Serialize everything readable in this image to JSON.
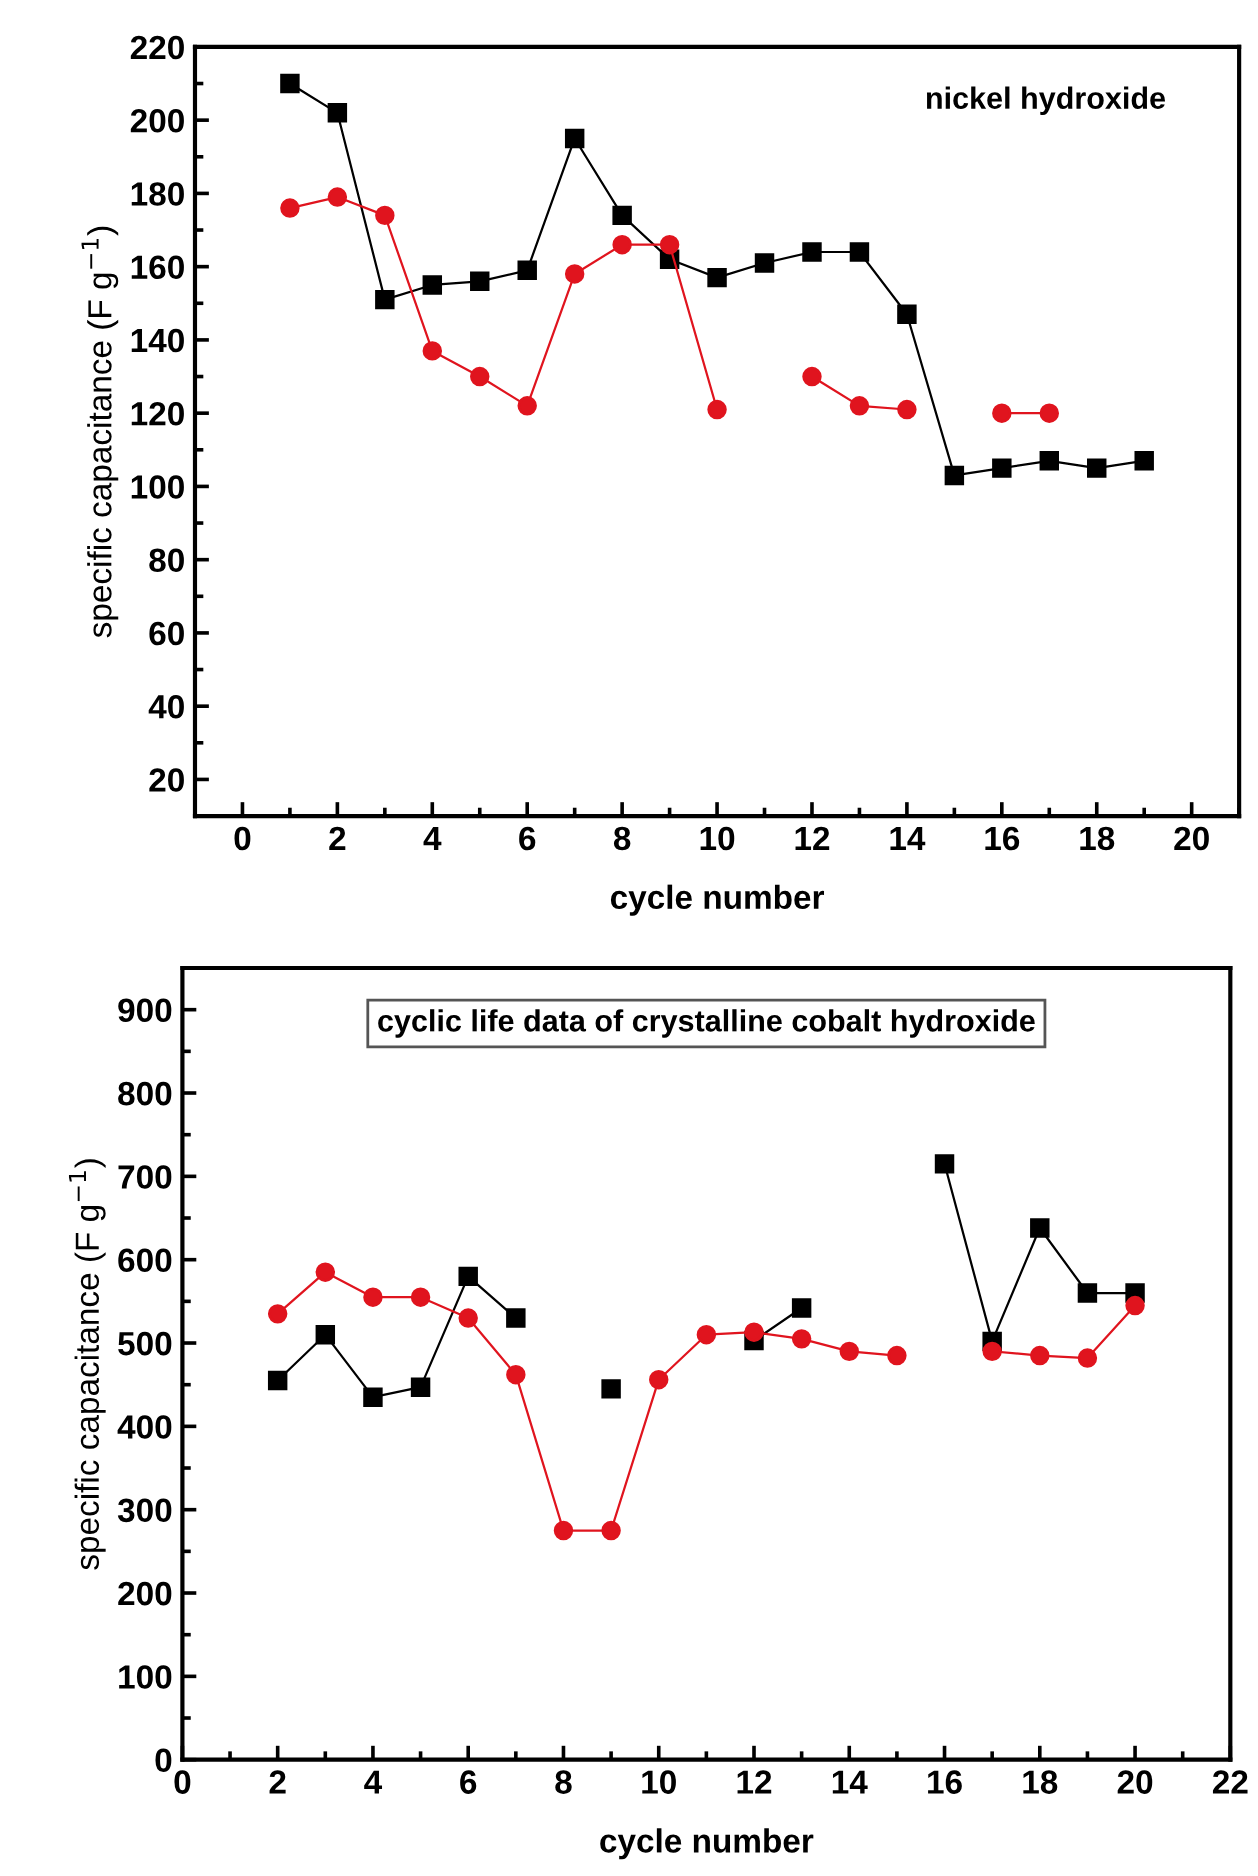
{
  "chart_data": [
    {
      "type": "line",
      "xlabel": "cycle number",
      "ylabel": "specific capacitance (F g$^{−1}$)",
      "annotations": [
        "nickel hydroxide"
      ],
      "xlim": [
        -1,
        21
      ],
      "xticks": [
        0,
        2,
        4,
        6,
        8,
        10,
        12,
        14,
        16,
        18,
        20
      ],
      "ylim": [
        10,
        220
      ],
      "yticks": [
        20,
        40,
        60,
        80,
        100,
        120,
        140,
        160,
        180,
        200,
        220
      ],
      "series": [
        {
          "color": "#000000",
          "marker": "square",
          "x": [
            1,
            2,
            3,
            4,
            5,
            6,
            7,
            8,
            9,
            10,
            11,
            12,
            13,
            14,
            15,
            16,
            17,
            18,
            19
          ],
          "values": [
            210,
            202,
            151,
            155,
            156,
            159,
            195,
            174,
            162,
            157,
            161,
            164,
            164,
            147,
            103,
            105,
            107,
            105,
            107
          ]
        },
        {
          "color": "#e0141e",
          "marker": "circle",
          "x": [
            1,
            2,
            3,
            4,
            5,
            6,
            7,
            8,
            9,
            10,
            11,
            12,
            13,
            14,
            15,
            16,
            17
          ],
          "values": [
            176,
            179,
            174,
            137,
            130,
            122,
            158,
            166,
            166,
            121,
            null,
            130,
            122,
            121,
            null,
            120,
            120
          ]
        }
      ]
    },
    {
      "type": "line",
      "xlabel": "cycle number",
      "ylabel": "specific capacitance (F g$^{−1}$)",
      "annotations": [
        "cyclic life data of crystalline cobalt hydroxide"
      ],
      "xlim": [
        0,
        22
      ],
      "xticks": [
        0,
        2,
        4,
        6,
        8,
        10,
        12,
        14,
        16,
        18,
        20,
        22
      ],
      "ylim": [
        0,
        950
      ],
      "yticks": [
        0,
        100,
        200,
        300,
        400,
        500,
        600,
        700,
        800,
        900
      ],
      "series": [
        {
          "color": "#000000",
          "marker": "square",
          "x": [
            2,
            3,
            4,
            5,
            6,
            7,
            8,
            9,
            10,
            11,
            12,
            13,
            14,
            15,
            16,
            17,
            18,
            19,
            20
          ],
          "values": [
            455,
            510,
            435,
            447,
            580,
            530,
            null,
            445,
            null,
            null,
            503,
            542,
            null,
            null,
            715,
            502,
            638,
            560,
            560
          ]
        },
        {
          "color": "#e0141e",
          "marker": "circle",
          "x": [
            2,
            3,
            4,
            5,
            6,
            7,
            8,
            9,
            10,
            11,
            12,
            13,
            14,
            15,
            16,
            17,
            18,
            19,
            20
          ],
          "values": [
            535,
            585,
            555,
            555,
            530,
            462,
            275,
            275,
            456,
            510,
            513,
            505,
            490,
            485,
            null,
            490,
            485,
            482,
            545
          ]
        }
      ]
    }
  ]
}
